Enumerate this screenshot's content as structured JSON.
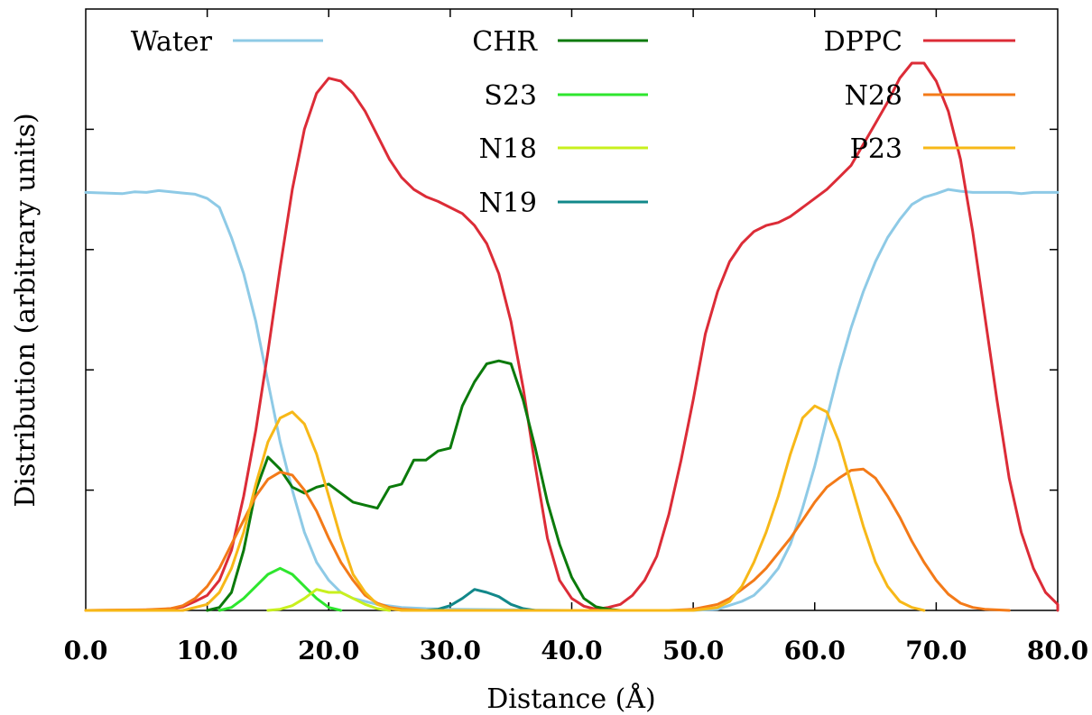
{
  "chart_data": {
    "type": "line",
    "title": "",
    "xlabel": "Distance (Å)",
    "ylabel": "Distribution (arbitrary units)",
    "xlim": [
      0,
      80
    ],
    "ylim": [
      0,
      100
    ],
    "x_ticks": [
      0,
      10,
      20,
      30,
      40,
      50,
      60,
      70,
      80
    ],
    "x_tick_labels": [
      "0.0",
      "10.0",
      "20.0",
      "30.0",
      "40.0",
      "50.0",
      "60.0",
      "70.0",
      "80.0"
    ],
    "y_ticks": [
      0,
      20,
      40,
      60,
      80
    ],
    "y_tick_labels": [],
    "grid": false,
    "legend_position": "top",
    "series": [
      {
        "name": "Water",
        "color": "#8ecae6",
        "points": [
          [
            0,
            69.5
          ],
          [
            3,
            69.3
          ],
          [
            4,
            69.6
          ],
          [
            5,
            69.5
          ],
          [
            6,
            69.8
          ],
          [
            8,
            69.4
          ],
          [
            9,
            69.2
          ],
          [
            10,
            68.5
          ],
          [
            11,
            67
          ],
          [
            12,
            62
          ],
          [
            13,
            56
          ],
          [
            14,
            48
          ],
          [
            15,
            38
          ],
          [
            16,
            28
          ],
          [
            17,
            20
          ],
          [
            18,
            13
          ],
          [
            19,
            8
          ],
          [
            20,
            5
          ],
          [
            21,
            3
          ],
          [
            22,
            2
          ],
          [
            24,
            1
          ],
          [
            26,
            0.5
          ],
          [
            28,
            0.3
          ],
          [
            30,
            0.2
          ],
          [
            40,
            0
          ],
          [
            50,
            0
          ],
          [
            52,
            0.2
          ],
          [
            54,
            1.5
          ],
          [
            55,
            2.5
          ],
          [
            56,
            4.5
          ],
          [
            57,
            7
          ],
          [
            58,
            11
          ],
          [
            59,
            17
          ],
          [
            60,
            24
          ],
          [
            61,
            32
          ],
          [
            62,
            40
          ],
          [
            63,
            47
          ],
          [
            64,
            53
          ],
          [
            65,
            58
          ],
          [
            66,
            62
          ],
          [
            67,
            65
          ],
          [
            68,
            67.5
          ],
          [
            69,
            68.7
          ],
          [
            70,
            69.3
          ],
          [
            71,
            70
          ],
          [
            72,
            69.7
          ],
          [
            73,
            69.5
          ],
          [
            74,
            69.5
          ],
          [
            76,
            69.5
          ],
          [
            77,
            69.3
          ],
          [
            78,
            69.5
          ],
          [
            80,
            69.5
          ]
        ]
      },
      {
        "name": "DPPC",
        "color": "#dc2c37",
        "points": [
          [
            0,
            0
          ],
          [
            6,
            0.1
          ],
          [
            7,
            0.3
          ],
          [
            8,
            0.6
          ],
          [
            9,
            1.5
          ],
          [
            10,
            2.5
          ],
          [
            11,
            5
          ],
          [
            12,
            10
          ],
          [
            13,
            19
          ],
          [
            14,
            30
          ],
          [
            15,
            43
          ],
          [
            16,
            57
          ],
          [
            17,
            70
          ],
          [
            18,
            80
          ],
          [
            19,
            86
          ],
          [
            20,
            88.5
          ],
          [
            21,
            88
          ],
          [
            22,
            86
          ],
          [
            23,
            83
          ],
          [
            24,
            79
          ],
          [
            25,
            75
          ],
          [
            26,
            72
          ],
          [
            27,
            70
          ],
          [
            28,
            68.8
          ],
          [
            29,
            68
          ],
          [
            30,
            67
          ],
          [
            31,
            66
          ],
          [
            32,
            64
          ],
          [
            33,
            61
          ],
          [
            34,
            56
          ],
          [
            35,
            48
          ],
          [
            36,
            37
          ],
          [
            37,
            24
          ],
          [
            38,
            12
          ],
          [
            39,
            5
          ],
          [
            40,
            2
          ],
          [
            41,
            0.7
          ],
          [
            42,
            0.2
          ],
          [
            43,
            0.5
          ],
          [
            44,
            1
          ],
          [
            45,
            2.5
          ],
          [
            46,
            5
          ],
          [
            47,
            9
          ],
          [
            48,
            16
          ],
          [
            49,
            25
          ],
          [
            50,
            35
          ],
          [
            51,
            46
          ],
          [
            52,
            53
          ],
          [
            53,
            58
          ],
          [
            54,
            61
          ],
          [
            55,
            63
          ],
          [
            56,
            64
          ],
          [
            57,
            64.5
          ],
          [
            58,
            65.5
          ],
          [
            59,
            67
          ],
          [
            60,
            68.5
          ],
          [
            61,
            70
          ],
          [
            62,
            72
          ],
          [
            63,
            74
          ],
          [
            64,
            77.5
          ],
          [
            65,
            81
          ],
          [
            66,
            84.5
          ],
          [
            67,
            88.5
          ],
          [
            68,
            91
          ],
          [
            69,
            91
          ],
          [
            70,
            88
          ],
          [
            71,
            83
          ],
          [
            72,
            75
          ],
          [
            73,
            63
          ],
          [
            74,
            49
          ],
          [
            75,
            35
          ],
          [
            76,
            22
          ],
          [
            77,
            13
          ],
          [
            78,
            7
          ],
          [
            79,
            3
          ],
          [
            80,
            1
          ],
          [
            81,
            0.3
          ],
          [
            82,
            0.1
          ],
          [
            84,
            0
          ]
        ]
      },
      {
        "name": "CHR",
        "color": "#0b7a0b",
        "points": [
          [
            10,
            0
          ],
          [
            11,
            0.5
          ],
          [
            12,
            3
          ],
          [
            13,
            10
          ],
          [
            14,
            20
          ],
          [
            15,
            25.5
          ],
          [
            16,
            23.5
          ],
          [
            17,
            20.5
          ],
          [
            18,
            19.5
          ],
          [
            19,
            20.5
          ],
          [
            20,
            21
          ],
          [
            21,
            19.5
          ],
          [
            22,
            18
          ],
          [
            23,
            17.5
          ],
          [
            24,
            17
          ],
          [
            25,
            20.5
          ],
          [
            26,
            21
          ],
          [
            27,
            25
          ],
          [
            28,
            25
          ],
          [
            29,
            26.5
          ],
          [
            30,
            27
          ],
          [
            31,
            34
          ],
          [
            32,
            38
          ],
          [
            33,
            41
          ],
          [
            34,
            41.5
          ],
          [
            35,
            41
          ],
          [
            36,
            35
          ],
          [
            37,
            27
          ],
          [
            38,
            18
          ],
          [
            39,
            11
          ],
          [
            40,
            5.5
          ],
          [
            41,
            2
          ],
          [
            42,
            0.6
          ],
          [
            43,
            0.2
          ],
          [
            44,
            0
          ]
        ]
      },
      {
        "name": "S23",
        "color": "#2ee62e",
        "points": [
          [
            11,
            0
          ],
          [
            12,
            0.5
          ],
          [
            13,
            2
          ],
          [
            14,
            4
          ],
          [
            15,
            6
          ],
          [
            16,
            7
          ],
          [
            17,
            6
          ],
          [
            18,
            4
          ],
          [
            19,
            2
          ],
          [
            20,
            0.5
          ],
          [
            21,
            0
          ]
        ]
      },
      {
        "name": "N18",
        "color": "#c8f01e",
        "points": [
          [
            15,
            0
          ],
          [
            16,
            0.2
          ],
          [
            17,
            0.8
          ],
          [
            18,
            2
          ],
          [
            19,
            3.5
          ],
          [
            20,
            3
          ],
          [
            21,
            3
          ],
          [
            22,
            2
          ],
          [
            23,
            1
          ],
          [
            24,
            0.3
          ],
          [
            25,
            0
          ]
        ]
      },
      {
        "name": "N19",
        "color": "#12888a",
        "points": [
          [
            28,
            0
          ],
          [
            29,
            0.2
          ],
          [
            30,
            0.8
          ],
          [
            31,
            2
          ],
          [
            32,
            3.5
          ],
          [
            33,
            3
          ],
          [
            34,
            2.3
          ],
          [
            35,
            1
          ],
          [
            36,
            0.3
          ],
          [
            37,
            0
          ]
        ]
      },
      {
        "name": "N28",
        "color": "#f37a18",
        "points": [
          [
            0,
            0
          ],
          [
            5,
            0.1
          ],
          [
            7,
            0.3
          ],
          [
            8,
            0.8
          ],
          [
            9,
            2
          ],
          [
            10,
            4
          ],
          [
            11,
            7
          ],
          [
            12,
            11
          ],
          [
            13,
            15
          ],
          [
            14,
            19
          ],
          [
            15,
            21.8
          ],
          [
            16,
            23
          ],
          [
            17,
            22.5
          ],
          [
            18,
            20
          ],
          [
            19,
            16.5
          ],
          [
            20,
            12
          ],
          [
            21,
            8
          ],
          [
            22,
            5
          ],
          [
            23,
            2.5
          ],
          [
            24,
            1.2
          ],
          [
            25,
            0.5
          ],
          [
            26,
            0.2
          ],
          [
            28,
            0
          ],
          [
            45,
            0
          ],
          [
            48,
            0
          ],
          [
            50,
            0.2
          ],
          [
            52,
            1
          ],
          [
            53,
            2
          ],
          [
            54,
            3.5
          ],
          [
            55,
            5
          ],
          [
            56,
            7
          ],
          [
            57,
            9.5
          ],
          [
            58,
            12
          ],
          [
            59,
            15
          ],
          [
            60,
            18
          ],
          [
            61,
            20.5
          ],
          [
            62,
            22
          ],
          [
            63,
            23.3
          ],
          [
            64,
            23.5
          ],
          [
            65,
            22
          ],
          [
            66,
            19
          ],
          [
            67,
            15.5
          ],
          [
            68,
            11.5
          ],
          [
            69,
            8
          ],
          [
            70,
            5
          ],
          [
            71,
            2.7
          ],
          [
            72,
            1.2
          ],
          [
            73,
            0.5
          ],
          [
            74,
            0.2
          ],
          [
            76,
            0
          ]
        ]
      },
      {
        "name": "P23",
        "color": "#f7b818",
        "points": [
          [
            0,
            0
          ],
          [
            8,
            0
          ],
          [
            9,
            0.5
          ],
          [
            10,
            1
          ],
          [
            11,
            3
          ],
          [
            12,
            7
          ],
          [
            13,
            13
          ],
          [
            14,
            21
          ],
          [
            15,
            28
          ],
          [
            16,
            32
          ],
          [
            17,
            33
          ],
          [
            18,
            31
          ],
          [
            19,
            26
          ],
          [
            20,
            19
          ],
          [
            21,
            12
          ],
          [
            22,
            6
          ],
          [
            23,
            3
          ],
          [
            24,
            1
          ],
          [
            25,
            0.3
          ],
          [
            26,
            0
          ],
          [
            50,
            0
          ],
          [
            52,
            0.5
          ],
          [
            53,
            1.5
          ],
          [
            54,
            4
          ],
          [
            55,
            8
          ],
          [
            56,
            13
          ],
          [
            57,
            19
          ],
          [
            58,
            26
          ],
          [
            59,
            32
          ],
          [
            60,
            34
          ],
          [
            61,
            33
          ],
          [
            62,
            28
          ],
          [
            63,
            21
          ],
          [
            64,
            14
          ],
          [
            65,
            8
          ],
          [
            66,
            4
          ],
          [
            67,
            1.5
          ],
          [
            68,
            0.5
          ],
          [
            69,
            0
          ]
        ]
      }
    ]
  }
}
